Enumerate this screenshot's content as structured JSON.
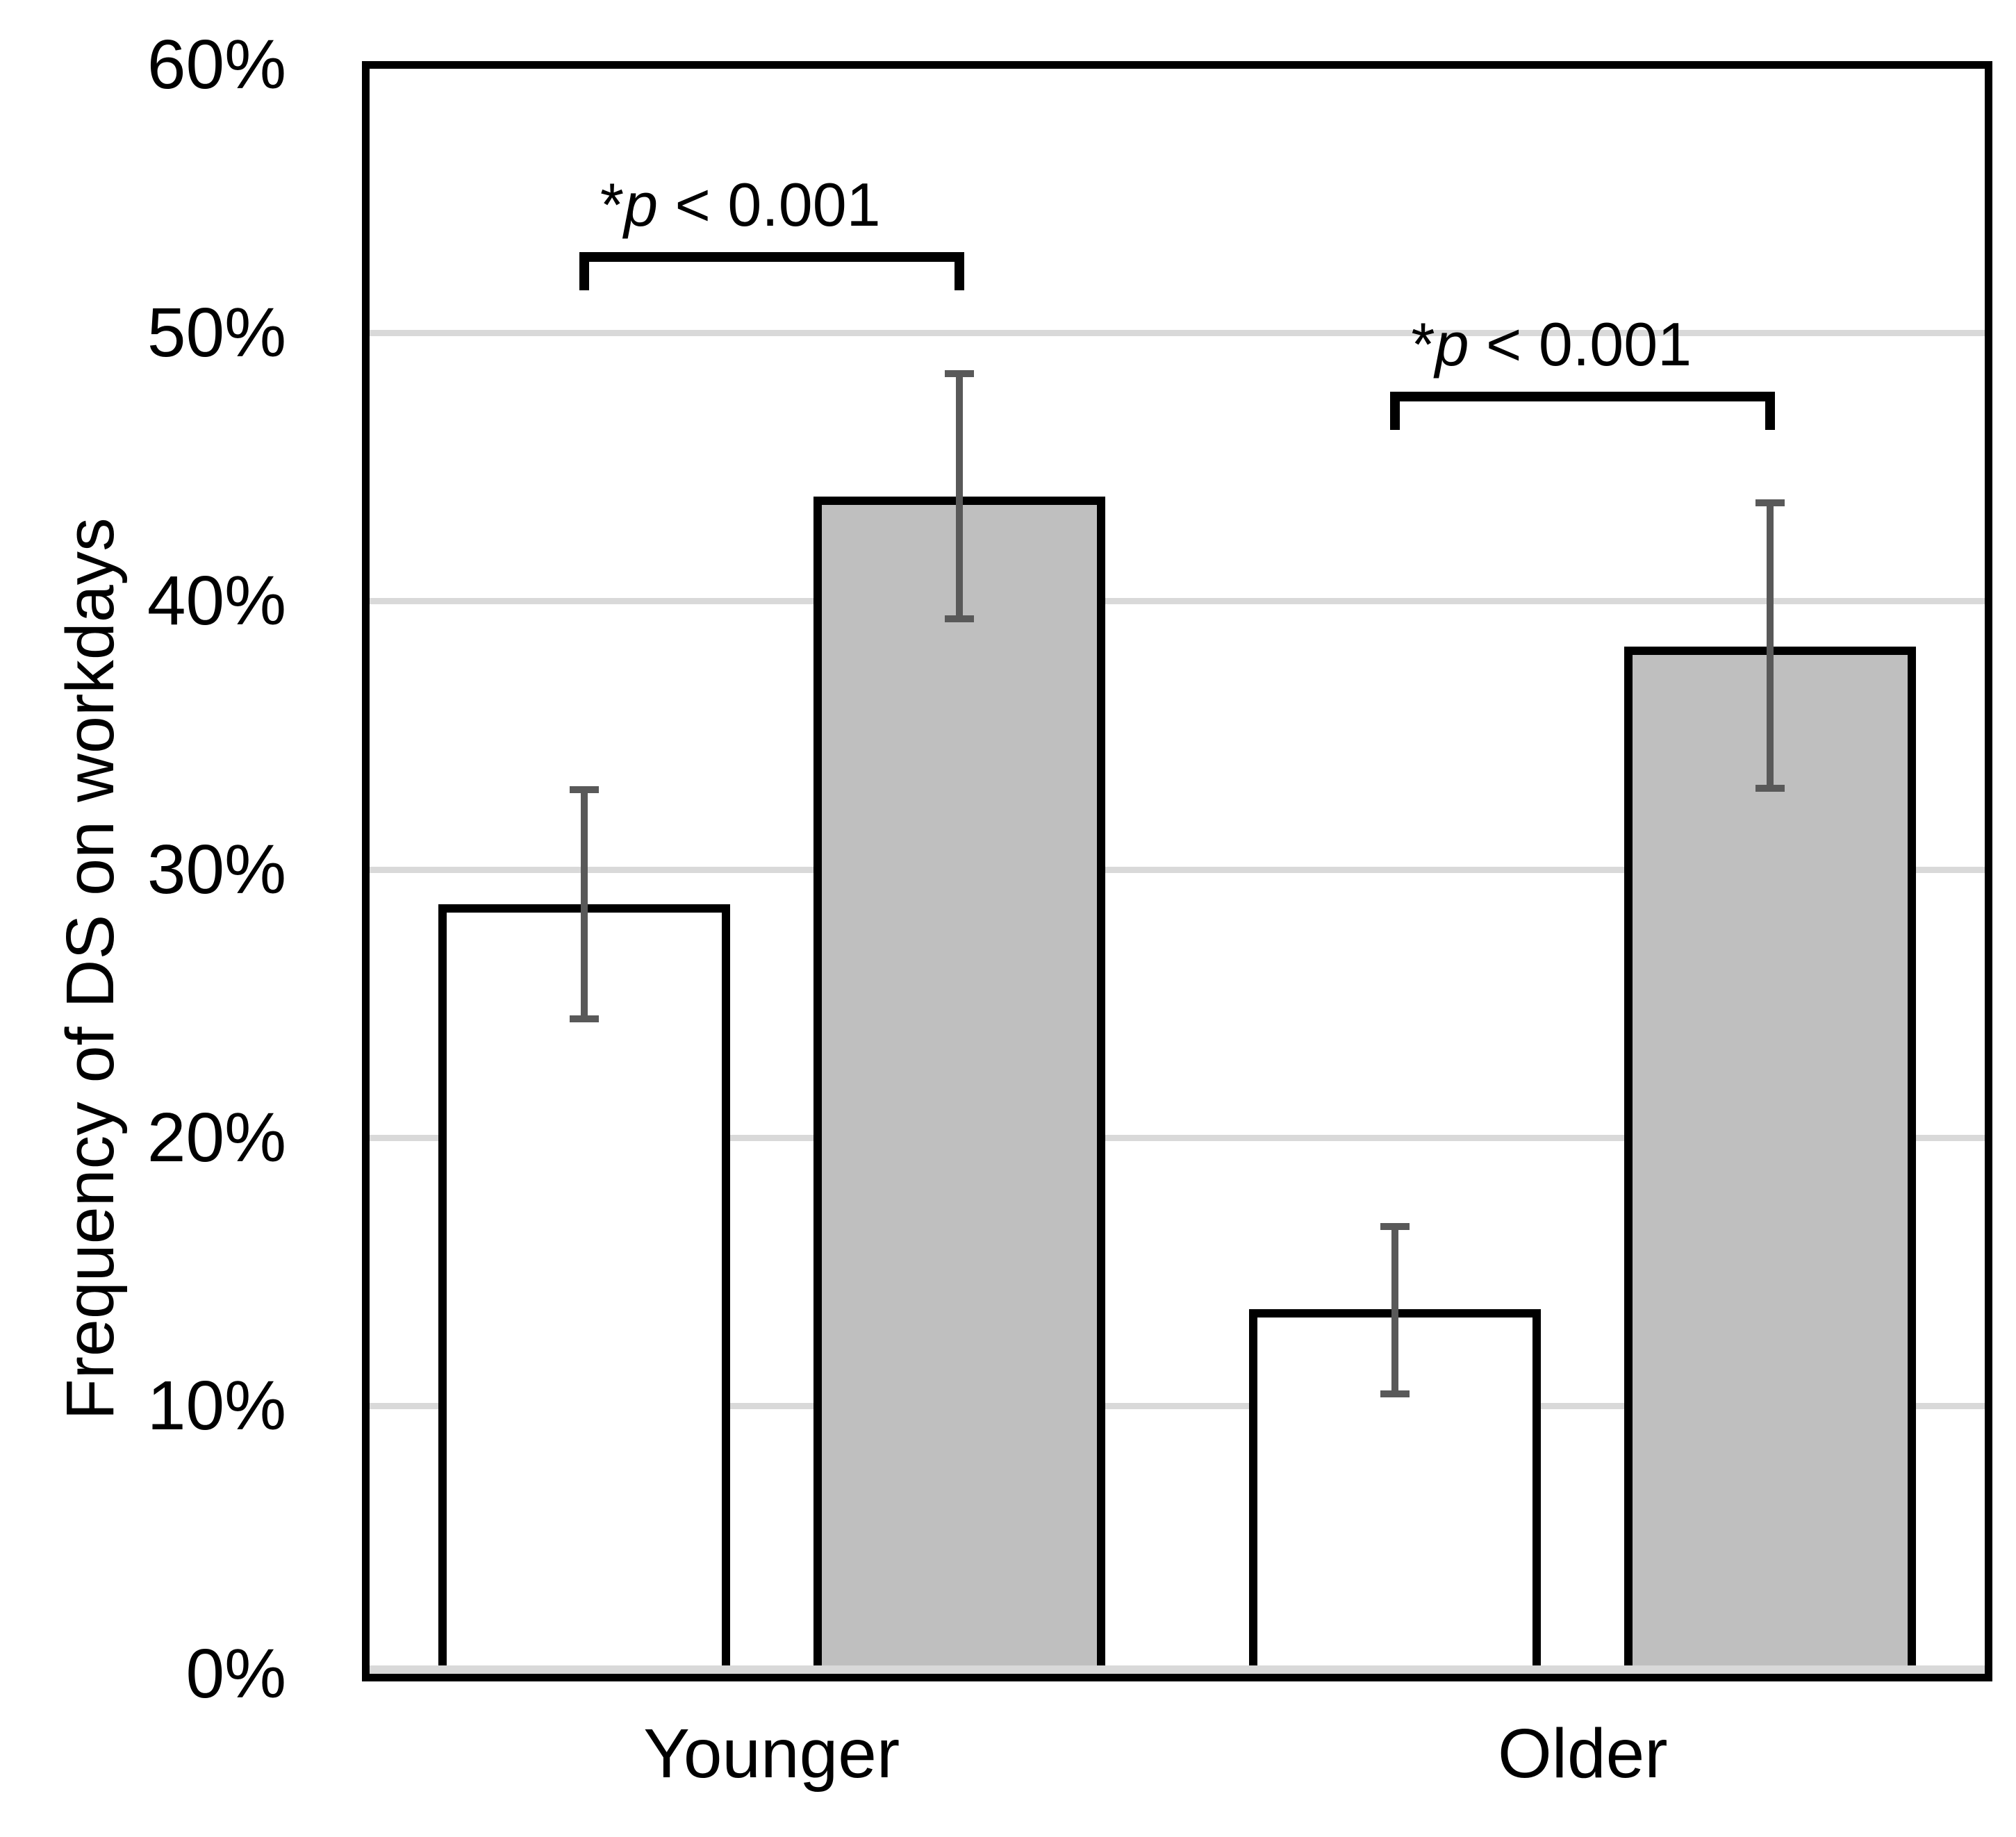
{
  "chart_data": {
    "type": "bar",
    "title": "",
    "xlabel": "",
    "ylabel": "Frequency of DS on workdays",
    "ylim": [
      0,
      60
    ],
    "grid": true,
    "legend_position": "none",
    "yticks": [
      {
        "value": 0,
        "label": "0%"
      },
      {
        "value": 10,
        "label": "10%"
      },
      {
        "value": 20,
        "label": "20%"
      },
      {
        "value": 30,
        "label": "30%"
      },
      {
        "value": 40,
        "label": "40%"
      },
      {
        "value": 50,
        "label": "50%"
      },
      {
        "value": 60,
        "label": "60%"
      }
    ],
    "categories": [
      "Younger",
      "Older"
    ],
    "series": [
      {
        "name": "white-bar",
        "fill": "#FFFFFF",
        "values": [
          28.7,
          13.6
        ],
        "error_low": [
          24.3,
          10.3
        ],
        "error_high": [
          33.1,
          16.8
        ]
      },
      {
        "name": "gray-bar",
        "fill": "#BFBFBF",
        "values": [
          43.9,
          38.3
        ],
        "error_low": [
          39.2,
          32.9
        ],
        "error_high": [
          48.6,
          43.8
        ]
      }
    ],
    "significance_brackets": [
      {
        "category": "Younger",
        "y": 53.0,
        "label_star": "*",
        "label_var": "p",
        "label_rest": " < 0.001"
      },
      {
        "category": "Older",
        "y": 47.8,
        "label_star": "*",
        "label_var": "p",
        "label_rest": " < 0.001"
      }
    ],
    "colors": {
      "bar_border": "#000000",
      "error_bar": "#595959",
      "gridline": "#D9D9D9",
      "axis_line": "#D9D9D9",
      "plot_border": "#000000",
      "text": "#000000",
      "background": "#FFFFFF"
    }
  }
}
